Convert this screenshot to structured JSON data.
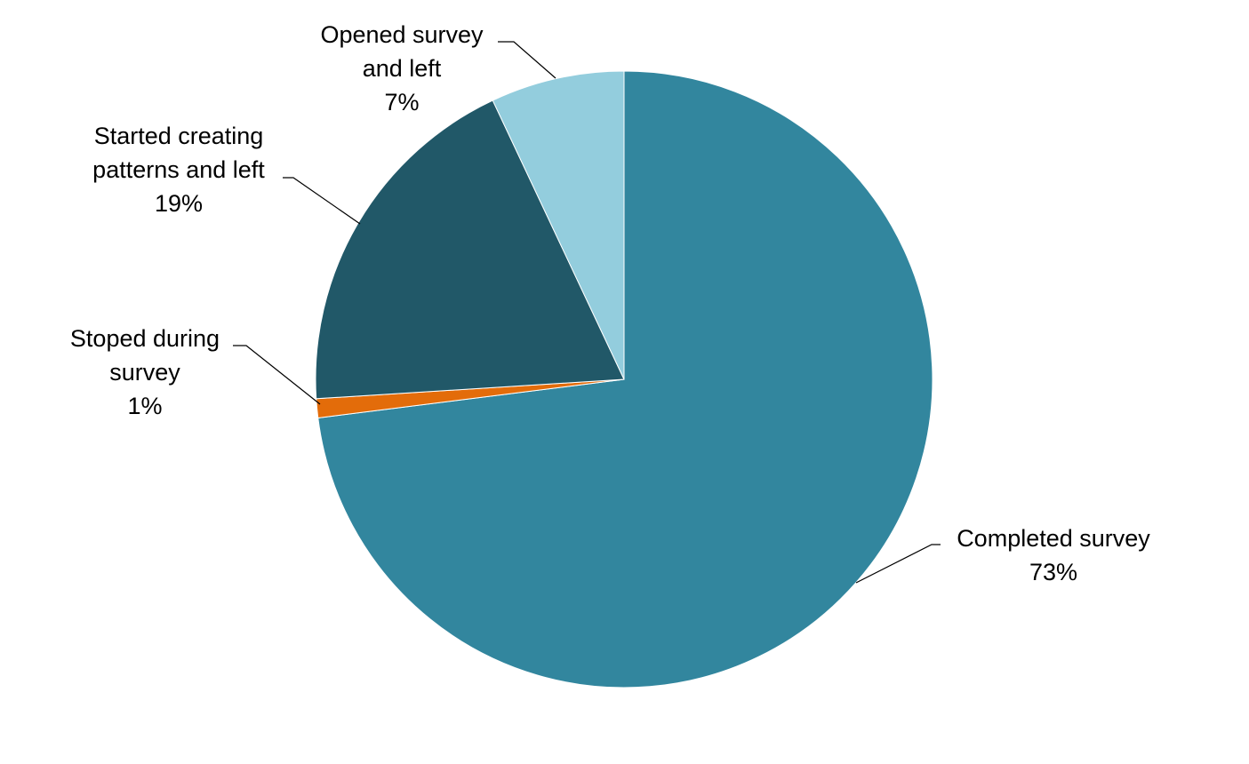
{
  "chart_data": {
    "type": "pie",
    "title": "",
    "start_angle_deg": 0,
    "direction": "clockwise",
    "slices": [
      {
        "label_lines": [
          "Completed survey"
        ],
        "percent_label": "73%",
        "value": 73,
        "color": "#32869e"
      },
      {
        "label_lines": [
          "Stoped during",
          "survey"
        ],
        "percent_label": "1%",
        "value": 1,
        "color": "#e36c0a"
      },
      {
        "label_lines": [
          "Started creating",
          "patterns and left"
        ],
        "percent_label": "19%",
        "value": 19,
        "color": "#215868"
      },
      {
        "label_lines": [
          "Opened survey",
          "and left"
        ],
        "percent_label": "7%",
        "value": 7,
        "color": "#93cddd"
      }
    ],
    "legend": "none",
    "data_labels": "outside with leader lines"
  }
}
